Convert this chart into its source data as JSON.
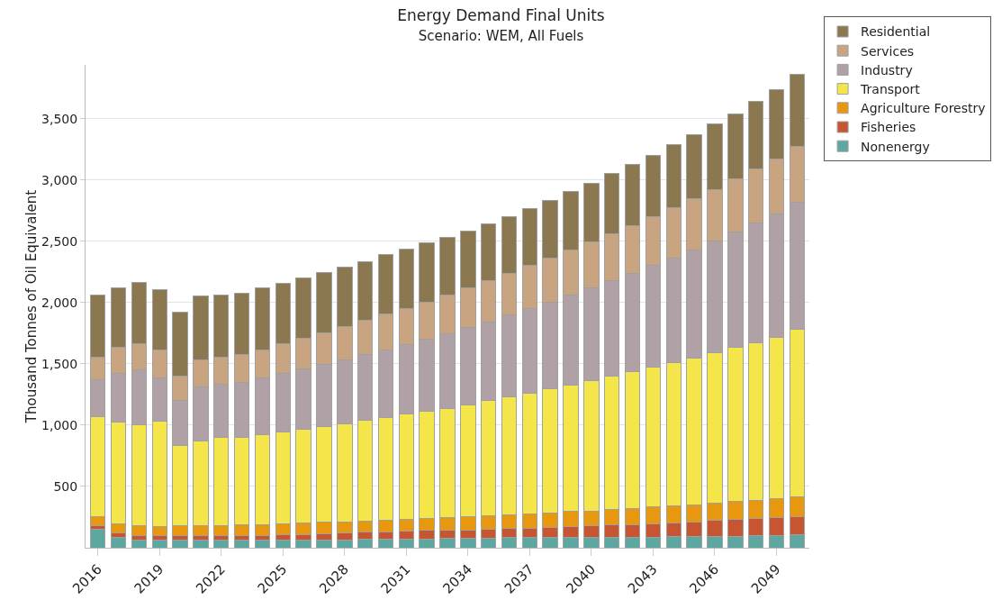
{
  "chart_data": {
    "type": "bar",
    "title": "Energy Demand Final Units",
    "subtitle": "Scenario: WEM, All Fuels",
    "ylabel": "Thousand Tonnes of Oil Equivalent",
    "x": [
      2016,
      2017,
      2018,
      2019,
      2020,
      2021,
      2022,
      2023,
      2024,
      2025,
      2026,
      2027,
      2028,
      2029,
      2030,
      2031,
      2032,
      2033,
      2034,
      2035,
      2036,
      2037,
      2038,
      2039,
      2040,
      2041,
      2042,
      2043,
      2044,
      2045,
      2046,
      2047,
      2048,
      2049,
      2050
    ],
    "stacked": true,
    "grid": "y",
    "legend": "top right",
    "xlim": [
      2015.4,
      2050.6
    ],
    "xticks": [
      2016,
      2019,
      2022,
      2025,
      2028,
      2031,
      2034,
      2037,
      2040,
      2043,
      2046,
      2049
    ],
    "ylim": [
      0,
      3940
    ],
    "yticks": [
      {
        "value": 500,
        "label": "500"
      },
      {
        "value": 1000,
        "label": "1,000"
      },
      {
        "value": 1500,
        "label": "1,500"
      },
      {
        "value": 2000,
        "label": "2,000"
      },
      {
        "value": 2500,
        "label": "2,500"
      },
      {
        "value": 3000,
        "label": "3,000"
      },
      {
        "value": 3500,
        "label": "3,500"
      }
    ],
    "series": [
      {
        "name": "Nonenergy",
        "color": "#5ea7a1",
        "values": [
          150,
          83,
          61,
          61,
          61,
          61,
          61,
          61,
          61,
          61,
          61,
          63,
          63,
          68,
          68,
          68,
          73,
          76,
          76,
          76,
          81,
          81,
          83,
          83,
          88,
          88,
          88,
          88,
          92,
          92,
          92,
          95,
          97,
          97,
          104
        ]
      },
      {
        "name": "Fisheries",
        "color": "#c75532",
        "values": [
          28,
          41,
          38,
          38,
          38,
          38,
          38,
          41,
          41,
          48,
          48,
          54,
          58,
          58,
          63,
          65,
          67,
          66,
          71,
          77,
          74,
          79,
          84,
          91,
          90,
          98,
          103,
          110,
          113,
          120,
          130,
          134,
          142,
          146,
          149
        ]
      },
      {
        "name": "Agriculture Forestry",
        "color": "#e8980e",
        "values": [
          72,
          72,
          82,
          77,
          82,
          82,
          82,
          84,
          89,
          87,
          91,
          90,
          91,
          93,
          93,
          99,
          99,
          104,
          108,
          110,
          115,
          119,
          119,
          122,
          123,
          127,
          129,
          134,
          137,
          139,
          139,
          147,
          148,
          154,
          161
        ]
      },
      {
        "name": "Transport",
        "color": "#f3e54a",
        "values": [
          818,
          827,
          825,
          859,
          650,
          691,
          720,
          715,
          731,
          748,
          765,
          782,
          799,
          818,
          837,
          856,
          872,
          889,
          909,
          937,
          959,
          984,
          1013,
          1033,
          1064,
          1086,
          1117,
          1141,
          1170,
          1199,
          1232,
          1256,
          1288,
          1321,
          1369
        ]
      },
      {
        "name": "Industry",
        "color": "#b0a1a6",
        "values": [
          300,
          403,
          446,
          350,
          369,
          441,
          433,
          446,
          463,
          477,
          494,
          509,
          525,
          540,
          554,
          572,
          593,
          610,
          631,
          643,
          671,
          688,
          707,
          730,
          754,
          777,
          804,
          831,
          853,
          883,
          912,
          942,
          976,
          1007,
          1039
        ]
      },
      {
        "name": "Services",
        "color": "#c8a580",
        "values": [
          187,
          208,
          211,
          228,
          201,
          218,
          219,
          227,
          232,
          242,
          250,
          256,
          268,
          278,
          290,
          295,
          302,
          316,
          324,
          333,
          339,
          350,
          357,
          367,
          376,
          387,
          386,
          397,
          408,
          417,
          419,
          434,
          437,
          449,
          455
        ]
      },
      {
        "name": "Residential",
        "color": "#8b7750",
        "values": [
          504,
          487,
          504,
          494,
          518,
          523,
          510,
          504,
          502,
          497,
          489,
          492,
          485,
          482,
          487,
          480,
          479,
          470,
          467,
          466,
          465,
          470,
          473,
          479,
          482,
          489,
          501,
          502,
          516,
          520,
          533,
          535,
          555,
          563,
          583
        ]
      }
    ]
  }
}
